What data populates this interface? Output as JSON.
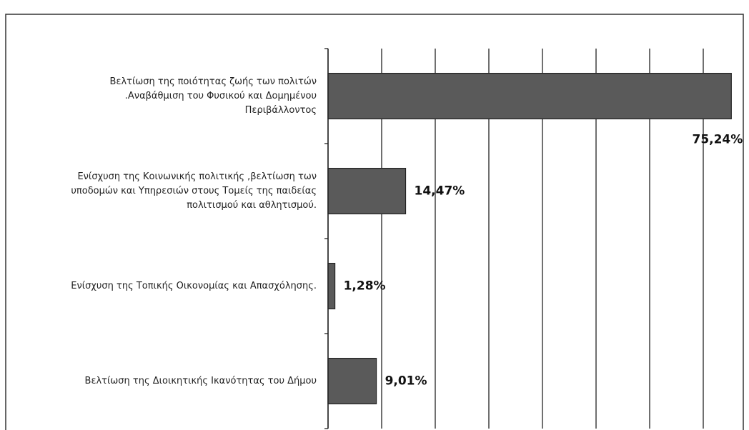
{
  "chart_data": {
    "type": "bar",
    "orientation": "horizontal",
    "categories": [
      "Βελτίωση της ποιότητας  ζωής των πολιτών\n.Αναβάθμιση του Φυσικού και Δομημένου\nΠεριβάλλοντος",
      "Ενίσχυση της Κοινωνικής πολιτικής ,βελτίωση των\nυποδομών και Υπηρεσιών στους Τομείς της παιδείας\nπολιτισμού και αθλητισμού.",
      "Ενίσχυση της Τοπικής Οικονομίας και Απασχόλησης.",
      "Βελτίωση της Διοικητικής Ικανότητας του Δήμου"
    ],
    "values": [
      75.24,
      14.47,
      1.28,
      9.01
    ],
    "value_labels": [
      "75,24%",
      "14,47%",
      "1,28%",
      "9,01%"
    ],
    "color": "#5a5a5a",
    "xlim": [
      0,
      80
    ],
    "xticks": [
      0,
      10,
      20,
      30,
      40,
      50,
      60,
      70
    ],
    "grid": true
  }
}
